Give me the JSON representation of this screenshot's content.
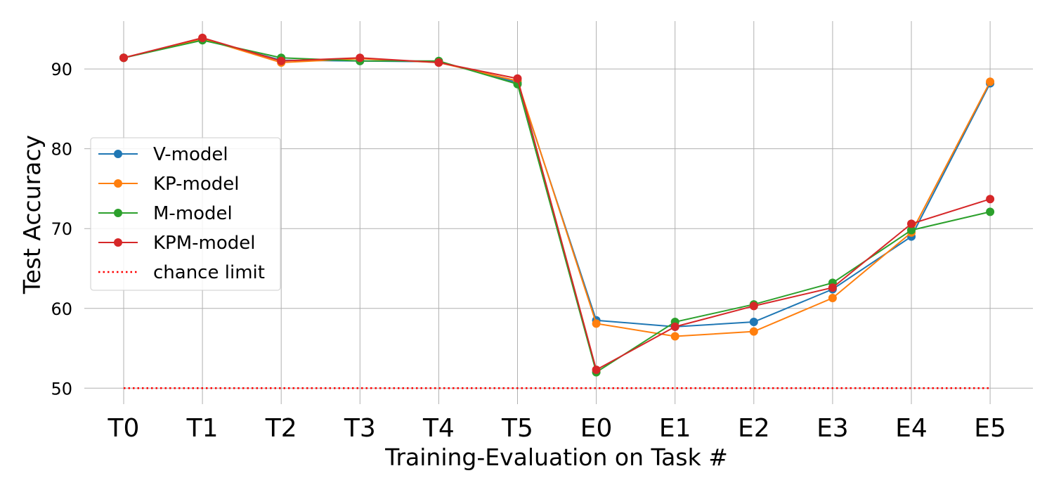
{
  "chart_data": {
    "type": "line",
    "xlabel": "Training-Evaluation on Task #",
    "ylabel": "Test Accuracy",
    "categories": [
      "T0",
      "T1",
      "T2",
      "T3",
      "T4",
      "T5",
      "E0",
      "E1",
      "E2",
      "E3",
      "E4",
      "E5"
    ],
    "ylim": [
      48,
      96
    ],
    "yticks": [
      50,
      60,
      70,
      80,
      90
    ],
    "grid": true,
    "legend_position": "center-left",
    "series": [
      {
        "name": "V-model",
        "color": "#1f77b4",
        "style": "solid-marker",
        "values": [
          91.4,
          93.7,
          91.1,
          91.0,
          90.9,
          88.3,
          58.5,
          57.7,
          58.3,
          62.4,
          69.0,
          88.2
        ]
      },
      {
        "name": "KP-model",
        "color": "#ff7f0e",
        "style": "solid-marker",
        "values": [
          91.4,
          93.8,
          90.8,
          91.3,
          90.8,
          88.5,
          58.1,
          56.5,
          57.1,
          61.3,
          69.5,
          88.4
        ]
      },
      {
        "name": "M-model",
        "color": "#2ca02c",
        "style": "solid-marker",
        "values": [
          91.4,
          93.6,
          91.4,
          91.0,
          91.0,
          88.1,
          52.0,
          58.3,
          60.5,
          63.2,
          69.8,
          72.1
        ]
      },
      {
        "name": "KPM-model",
        "color": "#d62728",
        "style": "solid-marker",
        "values": [
          91.4,
          93.9,
          91.0,
          91.4,
          90.8,
          88.8,
          52.3,
          57.7,
          60.3,
          62.6,
          70.6,
          73.7
        ]
      },
      {
        "name": "chance limit",
        "color": "#ff0000",
        "style": "dotted",
        "values": [
          50,
          50,
          50,
          50,
          50,
          50,
          50,
          50,
          50,
          50,
          50,
          50
        ]
      }
    ]
  }
}
